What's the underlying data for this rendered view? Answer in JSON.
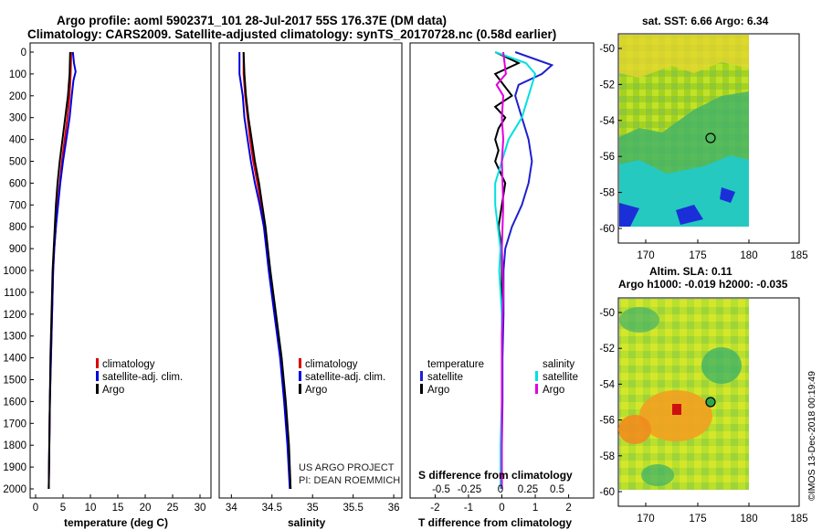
{
  "title_line1": "Argo profile: aoml 5902371_101 28-Jul-2017 55S 176.37E (DM data)",
  "title_line2": "Climatology: CARS2009. Satellite-adjusted climatology: synTS_20170728.nc (0.58d earlier)",
  "colors": {
    "climatology": "#dd0000",
    "satellite": "#0000dd",
    "argo": "#000000",
    "sat_temp": "#1f1fd0",
    "sat_sal": "#00e0e0",
    "argo_sal": "#e000e0"
  },
  "depth_ticks": [
    "0",
    "100",
    "200",
    "300",
    "400",
    "500",
    "600",
    "700",
    "800",
    "900",
    "1000",
    "1100",
    "1200",
    "1300",
    "1400",
    "1500",
    "1600",
    "1700",
    "1800",
    "1900",
    "2000"
  ],
  "chart_data": [
    {
      "type": "line",
      "id": "temperature",
      "xlabel": "temperature (deg C)",
      "xticks": [
        "0",
        "5",
        "10",
        "15",
        "20",
        "25",
        "30"
      ],
      "xlim": [
        -1,
        32
      ],
      "ylim": [
        2060,
        -10
      ],
      "legend": [
        "climatology",
        "satellite-adj. clim.",
        "Argo"
      ],
      "series": [
        {
          "name": "climatology",
          "color": "#dd0000",
          "depth": [
            0,
            100,
            200,
            300,
            400,
            500,
            600,
            700,
            800,
            900,
            1000,
            1200,
            1400,
            1600,
            1800,
            2000
          ],
          "values": [
            6.5,
            6.4,
            6.2,
            5.8,
            5.3,
            4.8,
            4.4,
            4.0,
            3.7,
            3.4,
            3.2,
            3.0,
            2.8,
            2.6,
            2.5,
            2.4
          ]
        },
        {
          "name": "satellite-adj. clim.",
          "color": "#0000dd",
          "depth": [
            0,
            50,
            90,
            130,
            200,
            300,
            400,
            500,
            600,
            700,
            800,
            900,
            1000,
            1200,
            1400,
            1600,
            1800,
            2000
          ],
          "values": [
            6.8,
            7.0,
            7.3,
            6.9,
            6.6,
            6.2,
            5.6,
            5.0,
            4.5,
            4.1,
            3.7,
            3.4,
            3.2,
            3.0,
            2.8,
            2.6,
            2.5,
            2.4
          ]
        },
        {
          "name": "Argo",
          "color": "#000000",
          "depth": [
            0,
            100,
            200,
            300,
            400,
            500,
            600,
            700,
            800,
            900,
            1000,
            1200,
            1400,
            1600,
            1800,
            2000
          ],
          "values": [
            6.3,
            6.2,
            5.9,
            5.4,
            4.9,
            4.4,
            4.0,
            3.7,
            3.5,
            3.3,
            3.1,
            2.9,
            2.7,
            2.6,
            2.5,
            2.4
          ]
        }
      ]
    },
    {
      "type": "line",
      "id": "salinity",
      "xlabel": "salinity",
      "xticks": [
        "34",
        "34.5",
        "35",
        "35.5",
        "36"
      ],
      "xlim": [
        33.85,
        36.1
      ],
      "ylim": [
        2060,
        -10
      ],
      "legend": [
        "climatology",
        "satellite-adj. clim.",
        "Argo"
      ],
      "annotation": [
        "US ARGO PROJECT",
        "PI: DEAN ROEMMICH"
      ],
      "series": [
        {
          "name": "climatology",
          "color": "#dd0000",
          "depth": [
            0,
            100,
            200,
            300,
            400,
            500,
            600,
            700,
            800,
            900,
            1000,
            1200,
            1400,
            1600,
            1800,
            2000
          ],
          "values": [
            34.15,
            34.15,
            34.17,
            34.2,
            34.23,
            34.27,
            34.32,
            34.37,
            34.41,
            34.44,
            34.47,
            34.54,
            34.61,
            34.66,
            34.7,
            34.73
          ]
        },
        {
          "name": "satellite-adj. clim.",
          "color": "#0000dd",
          "depth": [
            0,
            100,
            200,
            300,
            400,
            500,
            600,
            700,
            800,
            900,
            1000,
            1200,
            1400,
            1600,
            1800,
            2000
          ],
          "values": [
            34.1,
            34.1,
            34.14,
            34.16,
            34.2,
            34.24,
            34.29,
            34.35,
            34.4,
            34.43,
            34.46,
            34.53,
            34.6,
            34.65,
            34.69,
            34.72
          ]
        },
        {
          "name": "Argo",
          "color": "#000000",
          "depth": [
            0,
            100,
            200,
            300,
            400,
            500,
            600,
            700,
            800,
            900,
            1000,
            1200,
            1400,
            1600,
            1800,
            2000
          ],
          "values": [
            34.15,
            34.16,
            34.18,
            34.21,
            34.25,
            34.29,
            34.34,
            34.38,
            34.42,
            34.45,
            34.48,
            34.55,
            34.62,
            34.67,
            34.71,
            34.73
          ]
        }
      ]
    },
    {
      "type": "line",
      "id": "difference",
      "xlabel": "T difference from climatology",
      "xlabel_top": "S difference from climatology",
      "xticks": [
        "-2",
        "-1",
        "0",
        "1",
        "2"
      ],
      "xticks_top": [
        "-0.5",
        "-0.25",
        "0",
        "0.25",
        "0.5"
      ],
      "xlim": [
        -2.75,
        2.75
      ],
      "ylim": [
        2060,
        -10
      ],
      "legend_left_title": "temperature",
      "legend_right_title": "salinity",
      "legend_left": [
        "satellite",
        "Argo"
      ],
      "legend_right": [
        "satellite",
        "Argo"
      ],
      "series": [
        {
          "name": "temperature satellite",
          "color": "#1f1fd0",
          "depth": [
            0,
            60,
            100,
            150,
            200,
            300,
            400,
            500,
            600,
            700,
            800,
            900,
            1000,
            1200,
            1400,
            1600,
            1800,
            2000
          ],
          "values": [
            0.4,
            1.5,
            1.2,
            0.5,
            0.4,
            0.6,
            0.8,
            0.9,
            0.8,
            0.6,
            0.3,
            0.1,
            0.05,
            0.05,
            0.02,
            0.02,
            0.0,
            0.0
          ]
        },
        {
          "name": "temperature Argo",
          "color": "#000000",
          "depth": [
            0,
            50,
            100,
            200,
            250,
            300,
            350,
            400,
            450,
            500,
            600,
            700,
            800,
            900,
            1000,
            1200,
            1400,
            1600,
            1800,
            2000
          ],
          "values": [
            -0.2,
            0.5,
            -0.2,
            0.3,
            -0.2,
            0.1,
            -0.1,
            -0.2,
            -0.1,
            -0.2,
            0.1,
            0.0,
            -0.1,
            0.0,
            0.0,
            0.0,
            0.0,
            0.0,
            0.0,
            0.0
          ]
        },
        {
          "name": "salinity satellite",
          "color": "#00e0e0",
          "depth": [
            0,
            50,
            100,
            200,
            300,
            400,
            500,
            600,
            700,
            800,
            900,
            1000,
            1200,
            1400,
            1600,
            1800,
            2000
          ],
          "values": [
            -0.05,
            0.18,
            0.25,
            0.2,
            0.15,
            0.05,
            0.0,
            -0.05,
            -0.05,
            -0.03,
            -0.01,
            -0.02,
            0.0,
            0.0,
            0.0,
            -0.01,
            -0.01
          ]
        },
        {
          "name": "salinity Argo",
          "color": "#e000e0",
          "depth": [
            0,
            100,
            150,
            200,
            300,
            400,
            500,
            700,
            900,
            1100,
            1300,
            1500,
            1700,
            1900,
            2000
          ],
          "values": [
            0.01,
            0.03,
            -0.04,
            0.01,
            0.0,
            0.01,
            0.0,
            0.01,
            0.0,
            0.01,
            0.0,
            0.0,
            0.0,
            0.0,
            0.0
          ]
        }
      ]
    },
    {
      "type": "heatmap",
      "id": "sst_map",
      "title": "sat. SST: 6.66 Argo: 6.34",
      "yticks": [
        "-50",
        "-52",
        "-54",
        "-56",
        "-58",
        "-60"
      ],
      "xticks": [
        "170",
        "175",
        "180",
        "185"
      ],
      "marker": {
        "lon": 176.37,
        "lat": -55
      }
    },
    {
      "type": "heatmap",
      "id": "sla_map",
      "title_line1": "Altim. SLA: 0.11",
      "title_line2": "Argo h1000: -0.019 h2000: -0.035",
      "yticks": [
        "-50",
        "-52",
        "-54",
        "-56",
        "-58",
        "-60"
      ],
      "xticks": [
        "170",
        "175",
        "180",
        "185"
      ],
      "marker": {
        "lon": 176.37,
        "lat": -55
      }
    }
  ],
  "credit": "©IMOS 13-Dec-2018 00:19:49"
}
